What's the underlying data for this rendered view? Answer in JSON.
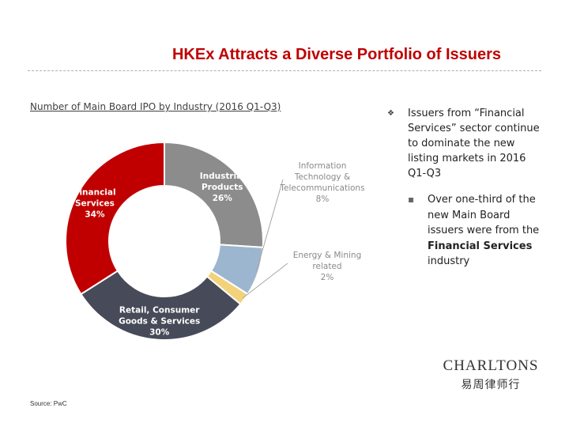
{
  "title": "HKEx Attracts a Diverse Portfolio of Issuers",
  "chart_heading": "Number of Main Board IPO by Industry (2016 Q1-Q3)",
  "chart_data": {
    "type": "pie",
    "title": "Number of Main Board IPO by Industry (2016 Q1-Q3)",
    "donut": true,
    "slices": [
      {
        "lines": [
          "Industrial",
          "Products"
        ],
        "value": 26,
        "label": "26%",
        "color": "#8c8c8c"
      },
      {
        "lines": [
          "Information",
          "Technology &",
          "Telecommunications"
        ],
        "value": 8,
        "label": "8%",
        "color": "#9db6cf"
      },
      {
        "lines": [
          "Energy & Mining",
          "related"
        ],
        "value": 2,
        "label": "2%",
        "color": "#f2d27a"
      },
      {
        "lines": [
          "Retail, Consumer",
          "Goods & Services"
        ],
        "value": 30,
        "label": "30%",
        "color": "#474b59"
      },
      {
        "lines": [
          "Financial",
          "Services"
        ],
        "value": 34,
        "label": "34%",
        "color": "#c00000"
      }
    ]
  },
  "bullets": {
    "main_icon": "bullet-glyph",
    "main_text": "Issuers from “Financial Services” sector continue to dominate the new listing markets in 2016 Q1-Q3",
    "sub_icon": "small-square-bullet",
    "sub_pre": "Over one-third of the new Main Board issuers were from the ",
    "sub_bold": "Financial Services",
    "sub_post": " industry"
  },
  "source": "Source: PwC",
  "logo": {
    "english": "CHARLTONS",
    "chinese": "易周律师行"
  }
}
